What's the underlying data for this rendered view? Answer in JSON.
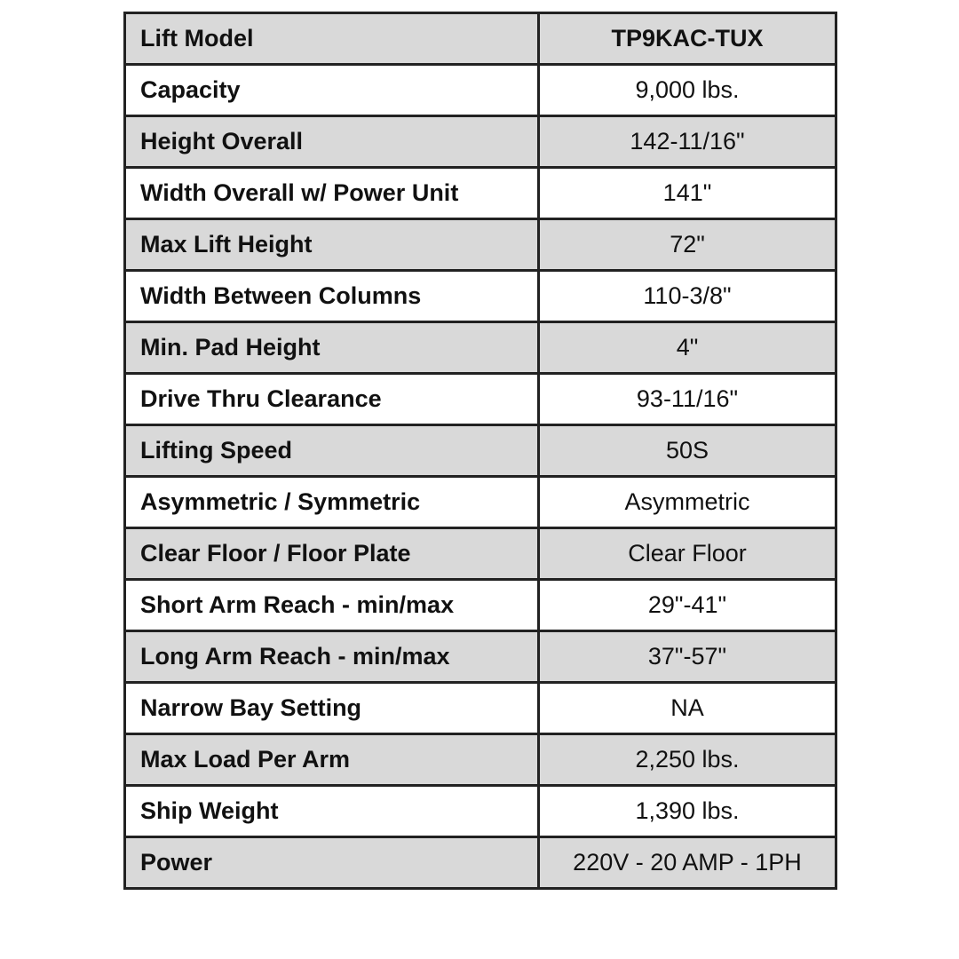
{
  "table": {
    "rows": [
      [
        "Lift Model",
        "TP9KAC-TUX"
      ],
      [
        "Capacity",
        "9,000 lbs."
      ],
      [
        "Height Overall",
        "142-11/16\""
      ],
      [
        "Width Overall w/ Power Unit",
        "141\""
      ],
      [
        "Max Lift Height",
        "72\""
      ],
      [
        "Width Between Columns",
        "110-3/8\""
      ],
      [
        "Min. Pad Height",
        "4\""
      ],
      [
        "Drive Thru Clearance",
        "93-11/16\""
      ],
      [
        "Lifting Speed",
        "50S"
      ],
      [
        "Asymmetric / Symmetric",
        "Asymmetric"
      ],
      [
        "Clear Floor / Floor Plate",
        "Clear Floor"
      ],
      [
        "Short Arm Reach - min/max",
        "29\"-41\""
      ],
      [
        "Long Arm Reach - min/max",
        "37\"-57\""
      ],
      [
        "Narrow Bay Setting",
        "NA"
      ],
      [
        "Max Load Per Arm",
        "2,250 lbs."
      ],
      [
        "Ship Weight",
        "1,390 lbs."
      ],
      [
        "Power",
        "220V - 20 AMP - 1PH"
      ]
    ]
  }
}
